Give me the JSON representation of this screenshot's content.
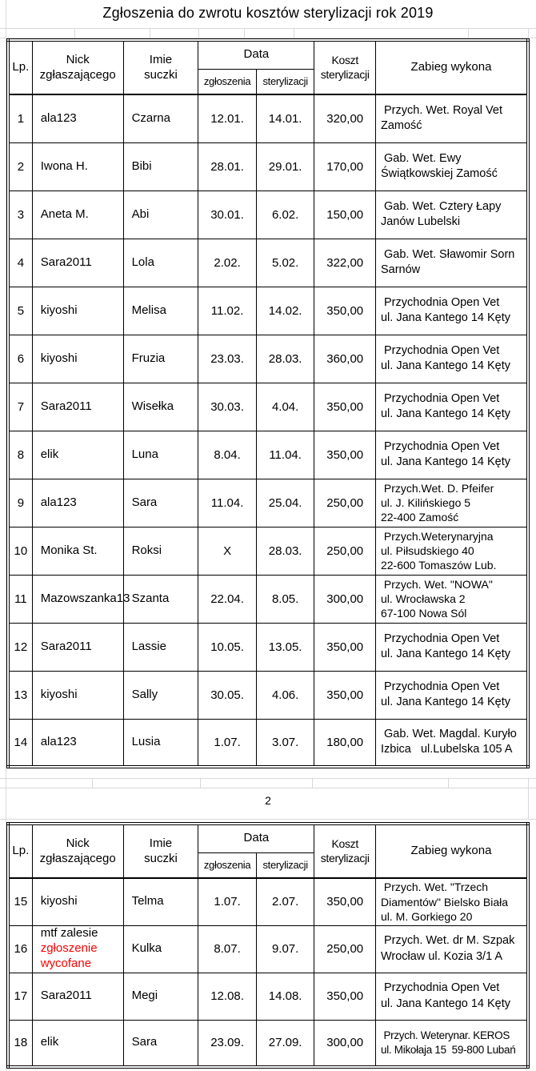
{
  "title": "Zgłoszenia do zwrotu kosztów sterylizacji rok 2019",
  "page2_label": "2",
  "colors": {
    "note_red": "#fe0000"
  },
  "header": {
    "lp": "Lp.",
    "nick": "Nick\nzgłaszającego",
    "imie": "Imie\nsuczki",
    "data": "Data",
    "zgloszenia": "zgłoszenia",
    "sterylizacji": "sterylizacji",
    "koszt": "Koszt\nsterylizacji",
    "zabieg": "Zabieg wykona"
  },
  "tables": [
    {
      "rows": [
        {
          "lp": "1",
          "nick": "ala123",
          "imie": "Czarna",
          "zgloszenia": "12.01.",
          "sterylizacji": "14.01.",
          "koszt": "320,00",
          "zabieg": " Przych. Wet. Royal Vet\nZamość"
        },
        {
          "lp": "2",
          "nick": "Iwona H.",
          "imie": "Bibi",
          "zgloszenia": "28.01.",
          "sterylizacji": "29.01.",
          "koszt": "170,00",
          "zabieg": " Gab. Wet. Ewy\nŚwiątkowskiej Zamość"
        },
        {
          "lp": "3",
          "nick": "Aneta M.",
          "imie": "Abi",
          "zgloszenia": "30.01.",
          "sterylizacji": "6.02.",
          "koszt": "150,00",
          "zabieg": " Gab. Wet. Cztery Łapy\nJanów Lubelski"
        },
        {
          "lp": "4",
          "nick": "Sara2011",
          "imie": "Lola",
          "zgloszenia": "2.02.",
          "sterylizacji": "5.02.",
          "koszt": "322,00",
          "zabieg": " Gab. Wet. Sławomir Sorn\nSarnów"
        },
        {
          "lp": "5",
          "nick": "kiyoshi",
          "imie": "Melisa",
          "zgloszenia": "11.02.",
          "sterylizacji": "14.02.",
          "koszt": "350,00",
          "zabieg": " Przychodnia Open Vet\nul. Jana Kantego 14 Kęty"
        },
        {
          "lp": "6",
          "nick": "kiyoshi",
          "imie": "Fruzia",
          "zgloszenia": "23.03.",
          "sterylizacji": "28.03.",
          "koszt": "360,00",
          "zabieg": " Przychodnia Open Vet\nul. Jana Kantego 14 Kęty"
        },
        {
          "lp": "7",
          "nick": "Sara2011",
          "imie": "Wisełka",
          "zgloszenia": "30.03.",
          "sterylizacji": "4.04.",
          "koszt": "350,00",
          "zabieg": " Przychodnia Open Vet\nul. Jana Kantego 14 Kęty"
        },
        {
          "lp": "8",
          "nick": "elik",
          "imie": "Luna",
          "zgloszenia": "8.04.",
          "sterylizacji": "11.04.",
          "koszt": "350,00",
          "zabieg": " Przychodnia Open Vet\nul. Jana Kantego 14 Kęty"
        },
        {
          "lp": "9",
          "nick": "ala123",
          "imie": "Sara",
          "zgloszenia": "11.04.",
          "sterylizacji": "25.04.",
          "koszt": "250,00",
          "zabieg": " Przych.Wet. D. Pfeifer\nul. J. Kilińskiego 5\n22-400 Zamość"
        },
        {
          "lp": "10",
          "nick": "Monika St.",
          "imie": "Roksi",
          "zgloszenia": "X",
          "sterylizacji": "28.03.",
          "koszt": "250,00",
          "zabieg": " Przych.Weterynaryjna\nul. Piłsudskiego 40\n22-600 Tomaszów Lub."
        },
        {
          "lp": "11",
          "nick": "Mazowszanka13",
          "imie": "Szanta",
          "zgloszenia": "22.04.",
          "sterylizacji": "8.05.",
          "koszt": "300,00",
          "zabieg": " Przych. Wet. \"NOWA\"\nul. Wrocławska 2\n67-100 Nowa Sól"
        },
        {
          "lp": "12",
          "nick": "Sara2011",
          "imie": "Lassie",
          "zgloszenia": "10.05.",
          "sterylizacji": "13.05.",
          "koszt": "350,00",
          "zabieg": " Przychodnia Open Vet\nul. Jana Kantego 14 Kęty"
        },
        {
          "lp": "13",
          "nick": "kiyoshi",
          "imie": "Sally",
          "zgloszenia": "30.05.",
          "sterylizacji": "4.06.",
          "koszt": "350,00",
          "zabieg": " Przychodnia Open Vet\nul. Jana Kantego 14 Kęty"
        },
        {
          "lp": "14",
          "nick": "ala123",
          "imie": "Lusia",
          "zgloszenia": "1.07.",
          "sterylizacji": "3.07.",
          "koszt": "180,00",
          "zabieg": " Gab. Wet. Magdal. Kuryło\nIzbica   ul.Lubelska 105 A"
        }
      ]
    },
    {
      "rows": [
        {
          "lp": "15",
          "nick": "kiyoshi",
          "imie": "Telma",
          "zgloszenia": "1.07.",
          "sterylizacji": "2.07.",
          "koszt": "350,00",
          "zabieg": " Przych. Wet. \"Trzech\nDiamentów\" Bielsko Biała\nul. M. Gorkiego 20"
        },
        {
          "lp": "16",
          "nick": "mtf zalesie",
          "nick_note": "zgłoszenie\nwycofane",
          "imie": "Kulka",
          "zgloszenia": "8.07.",
          "sterylizacji": "9.07.",
          "koszt": "250,00",
          "zabieg": " Przych. Wet. dr M. Szpak\nWrocław ul. Kozia 3/1 A"
        },
        {
          "lp": "17",
          "nick": "Sara2011",
          "imie": "Megi",
          "zgloszenia": "12.08.",
          "sterylizacji": "14.08.",
          "koszt": "350,00",
          "zabieg": " Przychodnia Open Vet\nul. Jana Kantego 14 Kęty"
        },
        {
          "lp": "18",
          "nick": "elik",
          "imie": "Sara",
          "zgloszenia": "23.09.",
          "sterylizacji": "27.09.",
          "koszt": "300,00",
          "zabieg": " Przych. Weterynar. KEROS\nul. Mikołaja 15  59-800 Lubań"
        }
      ]
    }
  ]
}
